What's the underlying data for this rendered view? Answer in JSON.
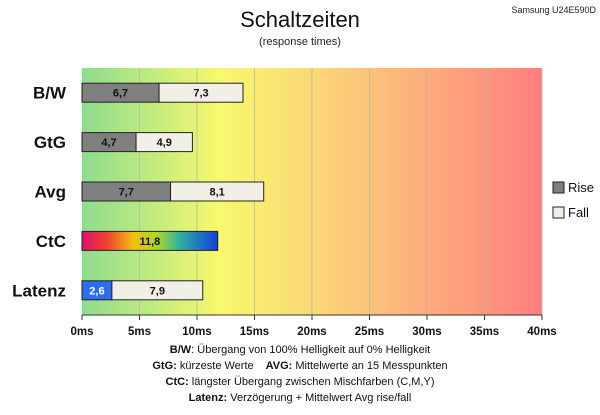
{
  "chart_data": {
    "type": "bar",
    "orientation": "horizontal",
    "title": "Schaltzeiten",
    "subtitle": "(response times)",
    "model": "Samsung U24E590D",
    "categories": [
      "B/W",
      "GtG",
      "Avg",
      "CtC",
      "Latenz"
    ],
    "series": [
      {
        "name": "Rise",
        "values": [
          6.7,
          4.7,
          7.7,
          null,
          null
        ]
      },
      {
        "name": "Fall",
        "values": [
          7.3,
          4.9,
          8.1,
          null,
          null
        ]
      }
    ],
    "ctc": {
      "value": 11.8,
      "label": "11,8"
    },
    "latenz": {
      "signal": 2.6,
      "signal_label": "2,6",
      "avg": 7.9,
      "avg_label": "7,9"
    },
    "value_labels": {
      "B/W": [
        "6,7",
        "7,3"
      ],
      "GtG": [
        "4,7",
        "4,9"
      ],
      "Avg": [
        "7,7",
        "8,1"
      ]
    },
    "xlim": [
      0,
      40
    ],
    "x_ticks": [
      0,
      5,
      10,
      15,
      20,
      25,
      30,
      35,
      40
    ],
    "x_tick_labels": [
      "0ms",
      "5ms",
      "10ms",
      "15ms",
      "20ms",
      "25ms",
      "30ms",
      "35ms",
      "40ms"
    ],
    "legend": {
      "position": "right",
      "items": [
        "Rise",
        "Fall"
      ]
    },
    "grid": true,
    "colors": {
      "rise": "#7f7f7f",
      "fall": "#f2f0e6",
      "latenz_signal": "#2f6df0",
      "bg_good": "#8fdc8f",
      "bg_mid": "#f8f870",
      "bg_bad": "#ff8080"
    },
    "notes": [
      {
        "key": "B/W",
        "text": ":  Übergang von 100% Helligkeit auf 0% Helligkeit"
      },
      {
        "key": "GtG:",
        "text": " kürzeste  Werte",
        "key2": "AVG:",
        "text2": " Mittelwerte  an 15 Messpunkten"
      },
      {
        "key": "CtC:",
        "text": " längster Übergang  zwischen Mischfarben  (C,M,Y)"
      },
      {
        "key": "Latenz:",
        "text": " Verzögerung  + Mittelwert Avg rise/fall"
      }
    ]
  }
}
